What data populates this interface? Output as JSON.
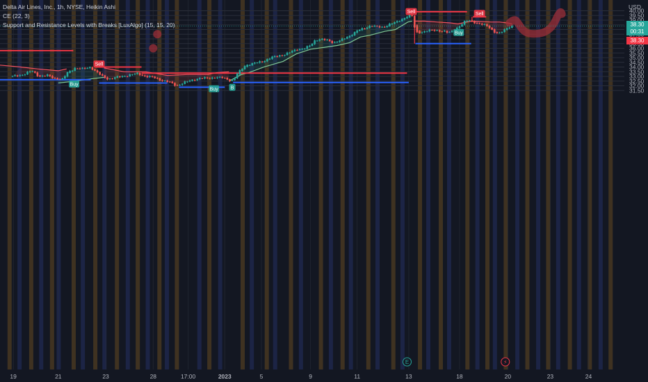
{
  "legend": {
    "symbol": "Delta Air Lines, Inc., 1h, NYSE, Heikin Ashi",
    "ce": "CE (22, 3)",
    "srlb": "Support and Resistance Levels with Breaks [LuxAlgo] (15, 15, 20)"
  },
  "currency": "USD",
  "price_tags": {
    "last": "38.30",
    "countdown": "00:31",
    "ce_value": "38.30"
  },
  "colors": {
    "background": "#131722",
    "up": "#26a69a",
    "down": "#ef5350",
    "resistance": "#f23645",
    "support": "#2962ff",
    "ce_long": "#81c995",
    "ce_short": "#f7525f",
    "session_orange": "#e0951f",
    "session_blue": "#3f5bd1"
  },
  "chart_data": {
    "type": "candlestick",
    "title": "Delta Air Lines, Inc., 1h, NYSE, Heikin Ashi",
    "ylabel": "USD",
    "ylim": [
      31.2,
      40.4
    ],
    "y_ticks": [
      "31.50",
      "32.00",
      "32.50",
      "33.00",
      "33.50",
      "34.00",
      "34.50",
      "35.00",
      "35.50",
      "36.00",
      "36.50",
      "37.00",
      "37.50",
      "38.00",
      "38.50",
      "39.00",
      "39.50",
      "40.00"
    ],
    "x_ticks": [
      "19",
      "21",
      "23",
      "28",
      "17:00",
      "2023",
      "5",
      "9",
      "11",
      "13",
      "18",
      "20",
      "23",
      "24"
    ],
    "x_tick_pos": [
      0.1,
      5.5,
      11.2,
      16.9,
      21.1,
      25.5,
      29.9,
      35.8,
      41.4,
      47.6,
      53.7,
      59.5,
      64.6,
      69.2
    ],
    "x_range": [
      -1.5,
      73.5
    ],
    "price_path": [
      [
        0,
        33.0
      ],
      [
        1.3,
        33.2
      ],
      [
        2.3,
        33.6
      ],
      [
        3.2,
        33.0
      ],
      [
        4.2,
        33.1
      ],
      [
        5.0,
        32.8
      ],
      [
        6.0,
        32.7
      ],
      [
        6.6,
        33.4
      ],
      [
        7.5,
        33.9
      ],
      [
        8.4,
        33.8
      ],
      [
        9.4,
        34.0
      ],
      [
        10.0,
        33.5
      ],
      [
        10.8,
        33.0
      ],
      [
        11.5,
        32.7
      ],
      [
        12.5,
        32.9
      ],
      [
        13.8,
        33.1
      ],
      [
        15.0,
        33.3
      ],
      [
        16.0,
        33.0
      ],
      [
        16.9,
        32.9
      ],
      [
        17.8,
        32.6
      ],
      [
        18.8,
        32.4
      ],
      [
        19.7,
        32.0
      ],
      [
        20.5,
        32.3
      ],
      [
        21.5,
        32.6
      ],
      [
        22.5,
        32.8
      ],
      [
        23.7,
        32.8
      ],
      [
        24.3,
        32.9
      ],
      [
        25.3,
        32.85
      ],
      [
        26.0,
        32.6
      ],
      [
        26.5,
        32.6
      ],
      [
        27.0,
        33.3
      ],
      [
        28.0,
        34.2
      ],
      [
        29.0,
        34.4
      ],
      [
        30.1,
        34.6
      ],
      [
        31.0,
        35.0
      ],
      [
        32.5,
        35.3
      ],
      [
        33.4,
        35.6
      ],
      [
        34.2,
        35.9
      ],
      [
        35.1,
        36.0
      ],
      [
        35.8,
        36.3
      ],
      [
        36.4,
        36.9
      ],
      [
        37.1,
        37.0
      ],
      [
        37.9,
        36.8
      ],
      [
        38.5,
        36.6
      ],
      [
        39.5,
        36.9
      ],
      [
        40.3,
        37.2
      ],
      [
        41.4,
        37.9
      ],
      [
        42.3,
        38.1
      ],
      [
        43.1,
        38.5
      ],
      [
        43.7,
        38.3
      ],
      [
        44.5,
        38.2
      ],
      [
        45.3,
        38.6
      ],
      [
        46.2,
        38.8
      ],
      [
        47.0,
        39.2
      ],
      [
        47.6,
        39.55
      ],
      [
        48.1,
        39.4
      ],
      [
        48.4,
        37.6
      ],
      [
        49.0,
        37.7
      ],
      [
        50.0,
        37.9
      ],
      [
        51.0,
        37.9
      ],
      [
        51.9,
        37.8
      ],
      [
        52.4,
        37.6
      ],
      [
        53.1,
        38.0
      ],
      [
        53.7,
        38.4
      ],
      [
        54.3,
        38.8
      ],
      [
        54.8,
        39.0
      ],
      [
        55.4,
        38.8
      ],
      [
        56.0,
        38.6
      ],
      [
        56.6,
        38.5
      ],
      [
        57.2,
        38.3
      ],
      [
        57.8,
        37.8
      ],
      [
        58.4,
        37.5
      ],
      [
        59.0,
        37.9
      ],
      [
        59.6,
        38.3
      ],
      [
        60.0,
        38.4
      ]
    ],
    "ce_long_path": [
      [
        5.5,
        32.3
      ],
      [
        7.5,
        32.5
      ],
      [
        10.0,
        32.8
      ],
      [
        11.0,
        32.9
      ],
      [
        26.0,
        32.5
      ],
      [
        27.5,
        33.2
      ],
      [
        28.4,
        33.4
      ],
      [
        30.2,
        34.0
      ],
      [
        32.5,
        34.6
      ],
      [
        34.1,
        35.4
      ],
      [
        35.8,
        35.9
      ],
      [
        37.5,
        36.1
      ],
      [
        39.0,
        36.3
      ],
      [
        40.5,
        36.6
      ],
      [
        41.8,
        37.2
      ],
      [
        43.0,
        37.4
      ],
      [
        44.7,
        37.8
      ],
      [
        46.0,
        38.0
      ],
      [
        47.5,
        38.8
      ],
      [
        48.0,
        38.9
      ]
    ],
    "ce_short_path": [
      [
        -1.5,
        34.2
      ],
      [
        1.0,
        34.0
      ],
      [
        3.0,
        33.8
      ],
      [
        5.5,
        33.6
      ],
      [
        6.5,
        33.8
      ],
      [
        11.0,
        33.9
      ],
      [
        13.4,
        33.5
      ],
      [
        16.0,
        33.5
      ],
      [
        18.6,
        33.1
      ],
      [
        21.0,
        33.2
      ],
      [
        23.5,
        33.2
      ],
      [
        24.5,
        33.4
      ],
      [
        26.0,
        33.5
      ],
      [
        48.2,
        38.9
      ],
      [
        49.5,
        38.9
      ],
      [
        51.0,
        38.8
      ],
      [
        52.6,
        38.7
      ],
      [
        53.5,
        38.6
      ],
      [
        55.2,
        38.9
      ],
      [
        57.5,
        38.8
      ],
      [
        58.5,
        38.8
      ],
      [
        59.5,
        38.7
      ],
      [
        60.0,
        38.6
      ]
    ],
    "resistance_levels": [
      {
        "x0": -1.5,
        "x1": 7.3,
        "y": 35.75
      },
      {
        "x0": 9.9,
        "x1": 15.5,
        "y": 34.0
      },
      {
        "x0": 15.5,
        "x1": 47.4,
        "y": 33.35
      },
      {
        "x0": 47.6,
        "x1": 54.6,
        "y": 39.9
      },
      {
        "x0": 55.3,
        "x1": 56.9,
        "y": 39.35
      }
    ],
    "support_levels": [
      {
        "x0": -1.5,
        "x1": 9.4,
        "y": 32.65
      },
      {
        "x0": 10.4,
        "x1": 18.6,
        "y": 32.3
      },
      {
        "x0": 20.0,
        "x1": 25.5,
        "y": 31.85
      },
      {
        "x0": 26.5,
        "x1": 47.6,
        "y": 32.35
      },
      {
        "x0": 48.4,
        "x1": 55.1,
        "y": 36.5
      }
    ],
    "signals": [
      {
        "label": "Buy",
        "x": 7.4,
        "y": 32.7
      },
      {
        "label": "Sell",
        "x": 10.4,
        "y": 33.95
      },
      {
        "label": "Buy",
        "x": 24.2,
        "y": 32.2
      },
      {
        "label": "B",
        "x": 26.4,
        "y": 32.35
      },
      {
        "label": "Sell",
        "x": 47.9,
        "y": 39.55
      },
      {
        "label": "Buy",
        "x": 53.6,
        "y": 38.2
      },
      {
        "label": "Sell",
        "x": 56.1,
        "y": 39.35
      }
    ],
    "sessions": [
      {
        "c": "o",
        "x": -0.6,
        "w": 0.5
      },
      {
        "c": "b",
        "x": 0.6,
        "w": 0.5
      },
      {
        "c": "o",
        "x": 2.0,
        "w": 0.5
      },
      {
        "c": "b",
        "x": 3.2,
        "w": 0.5
      },
      {
        "c": "o",
        "x": 4.5,
        "w": 0.5
      },
      {
        "c": "b",
        "x": 5.3,
        "w": 0.5
      },
      {
        "c": "o",
        "x": 7.1,
        "w": 0.5
      },
      {
        "c": "b",
        "x": 8.2,
        "w": 0.5
      },
      {
        "c": "o",
        "x": 9.7,
        "w": 0.5
      },
      {
        "c": "b",
        "x": 10.8,
        "w": 0.5
      },
      {
        "c": "o",
        "x": 12.3,
        "w": 0.5
      },
      {
        "c": "b",
        "x": 13.6,
        "w": 0.5
      },
      {
        "c": "o",
        "x": 14.8,
        "w": 0.5
      },
      {
        "c": "b",
        "x": 16.0,
        "w": 0.5
      },
      {
        "c": "o",
        "x": 17.4,
        "w": 0.5
      },
      {
        "c": "b",
        "x": 18.3,
        "w": 0.5
      },
      {
        "c": "o",
        "x": 19.5,
        "w": 0.5
      },
      {
        "c": "b",
        "x": 22.2,
        "w": 0.5
      },
      {
        "c": "o",
        "x": 23.4,
        "w": 0.5
      },
      {
        "c": "b",
        "x": 24.7,
        "w": 0.5
      },
      {
        "c": "o",
        "x": 27.4,
        "w": 0.5
      },
      {
        "c": "b",
        "x": 28.5,
        "w": 0.5
      },
      {
        "c": "o",
        "x": 30.3,
        "w": 0.5
      },
      {
        "c": "b",
        "x": 31.3,
        "w": 0.5
      },
      {
        "c": "o",
        "x": 33.2,
        "w": 0.5
      },
      {
        "c": "b",
        "x": 34.4,
        "w": 0.5
      },
      {
        "c": "o",
        "x": 36.8,
        "w": 0.5
      },
      {
        "c": "b",
        "x": 38.0,
        "w": 0.5
      },
      {
        "c": "o",
        "x": 39.4,
        "w": 0.5
      },
      {
        "c": "b",
        "x": 40.4,
        "w": 0.5
      },
      {
        "c": "o",
        "x": 42.5,
        "w": 0.5
      },
      {
        "c": "b",
        "x": 43.6,
        "w": 0.5
      },
      {
        "c": "o",
        "x": 45.5,
        "w": 0.5
      },
      {
        "c": "b",
        "x": 46.6,
        "w": 0.5
      },
      {
        "c": "o",
        "x": 48.7,
        "w": 0.5
      },
      {
        "c": "b",
        "x": 49.7,
        "w": 0.5
      },
      {
        "c": "o",
        "x": 51.2,
        "w": 0.5
      },
      {
        "c": "b",
        "x": 52.2,
        "w": 0.5
      },
      {
        "c": "o",
        "x": 54.4,
        "w": 0.5
      },
      {
        "c": "b",
        "x": 55.6,
        "w": 0.5
      },
      {
        "c": "o",
        "x": 56.8,
        "w": 0.5
      },
      {
        "c": "b",
        "x": 57.7,
        "w": 0.5
      },
      {
        "c": "o",
        "x": 59.0,
        "w": 0.5
      },
      {
        "c": "b",
        "x": 60.4,
        "w": 0.5
      },
      {
        "c": "o",
        "x": 61.6,
        "w": 0.5
      },
      {
        "c": "b",
        "x": 62.9,
        "w": 0.5
      },
      {
        "c": "o",
        "x": 64.1,
        "w": 0.5
      },
      {
        "c": "b",
        "x": 65.3,
        "w": 0.5
      },
      {
        "c": "o",
        "x": 66.7,
        "w": 0.5
      },
      {
        "c": "b",
        "x": 67.8,
        "w": 0.5
      },
      {
        "c": "o",
        "x": 69.1,
        "w": 0.5
      },
      {
        "c": "b",
        "x": 70.4,
        "w": 0.5
      },
      {
        "c": "o",
        "x": 71.6,
        "w": 0.5
      }
    ],
    "annotations": {
      "earnings_icon": {
        "label": "E",
        "x": 47.4
      },
      "dividend_icon": {
        "label": "⚡",
        "x": 59.2
      },
      "drawn_stroke": [
        [
          59.7,
          38.7
        ],
        [
          60.3,
          39.2
        ],
        [
          60.8,
          38.6
        ],
        [
          61.4,
          37.8
        ],
        [
          62.3,
          37.5
        ],
        [
          63.6,
          37.6
        ],
        [
          64.3,
          37.9
        ],
        [
          65.0,
          38.5
        ],
        [
          65.5,
          39.5
        ],
        [
          65.9,
          40.0
        ],
        [
          66.1,
          39.3
        ]
      ],
      "drawn_dots": [
        {
          "x": 17.4,
          "y": 37.5
        },
        {
          "x": 16.9,
          "y": 36.0
        }
      ]
    }
  }
}
